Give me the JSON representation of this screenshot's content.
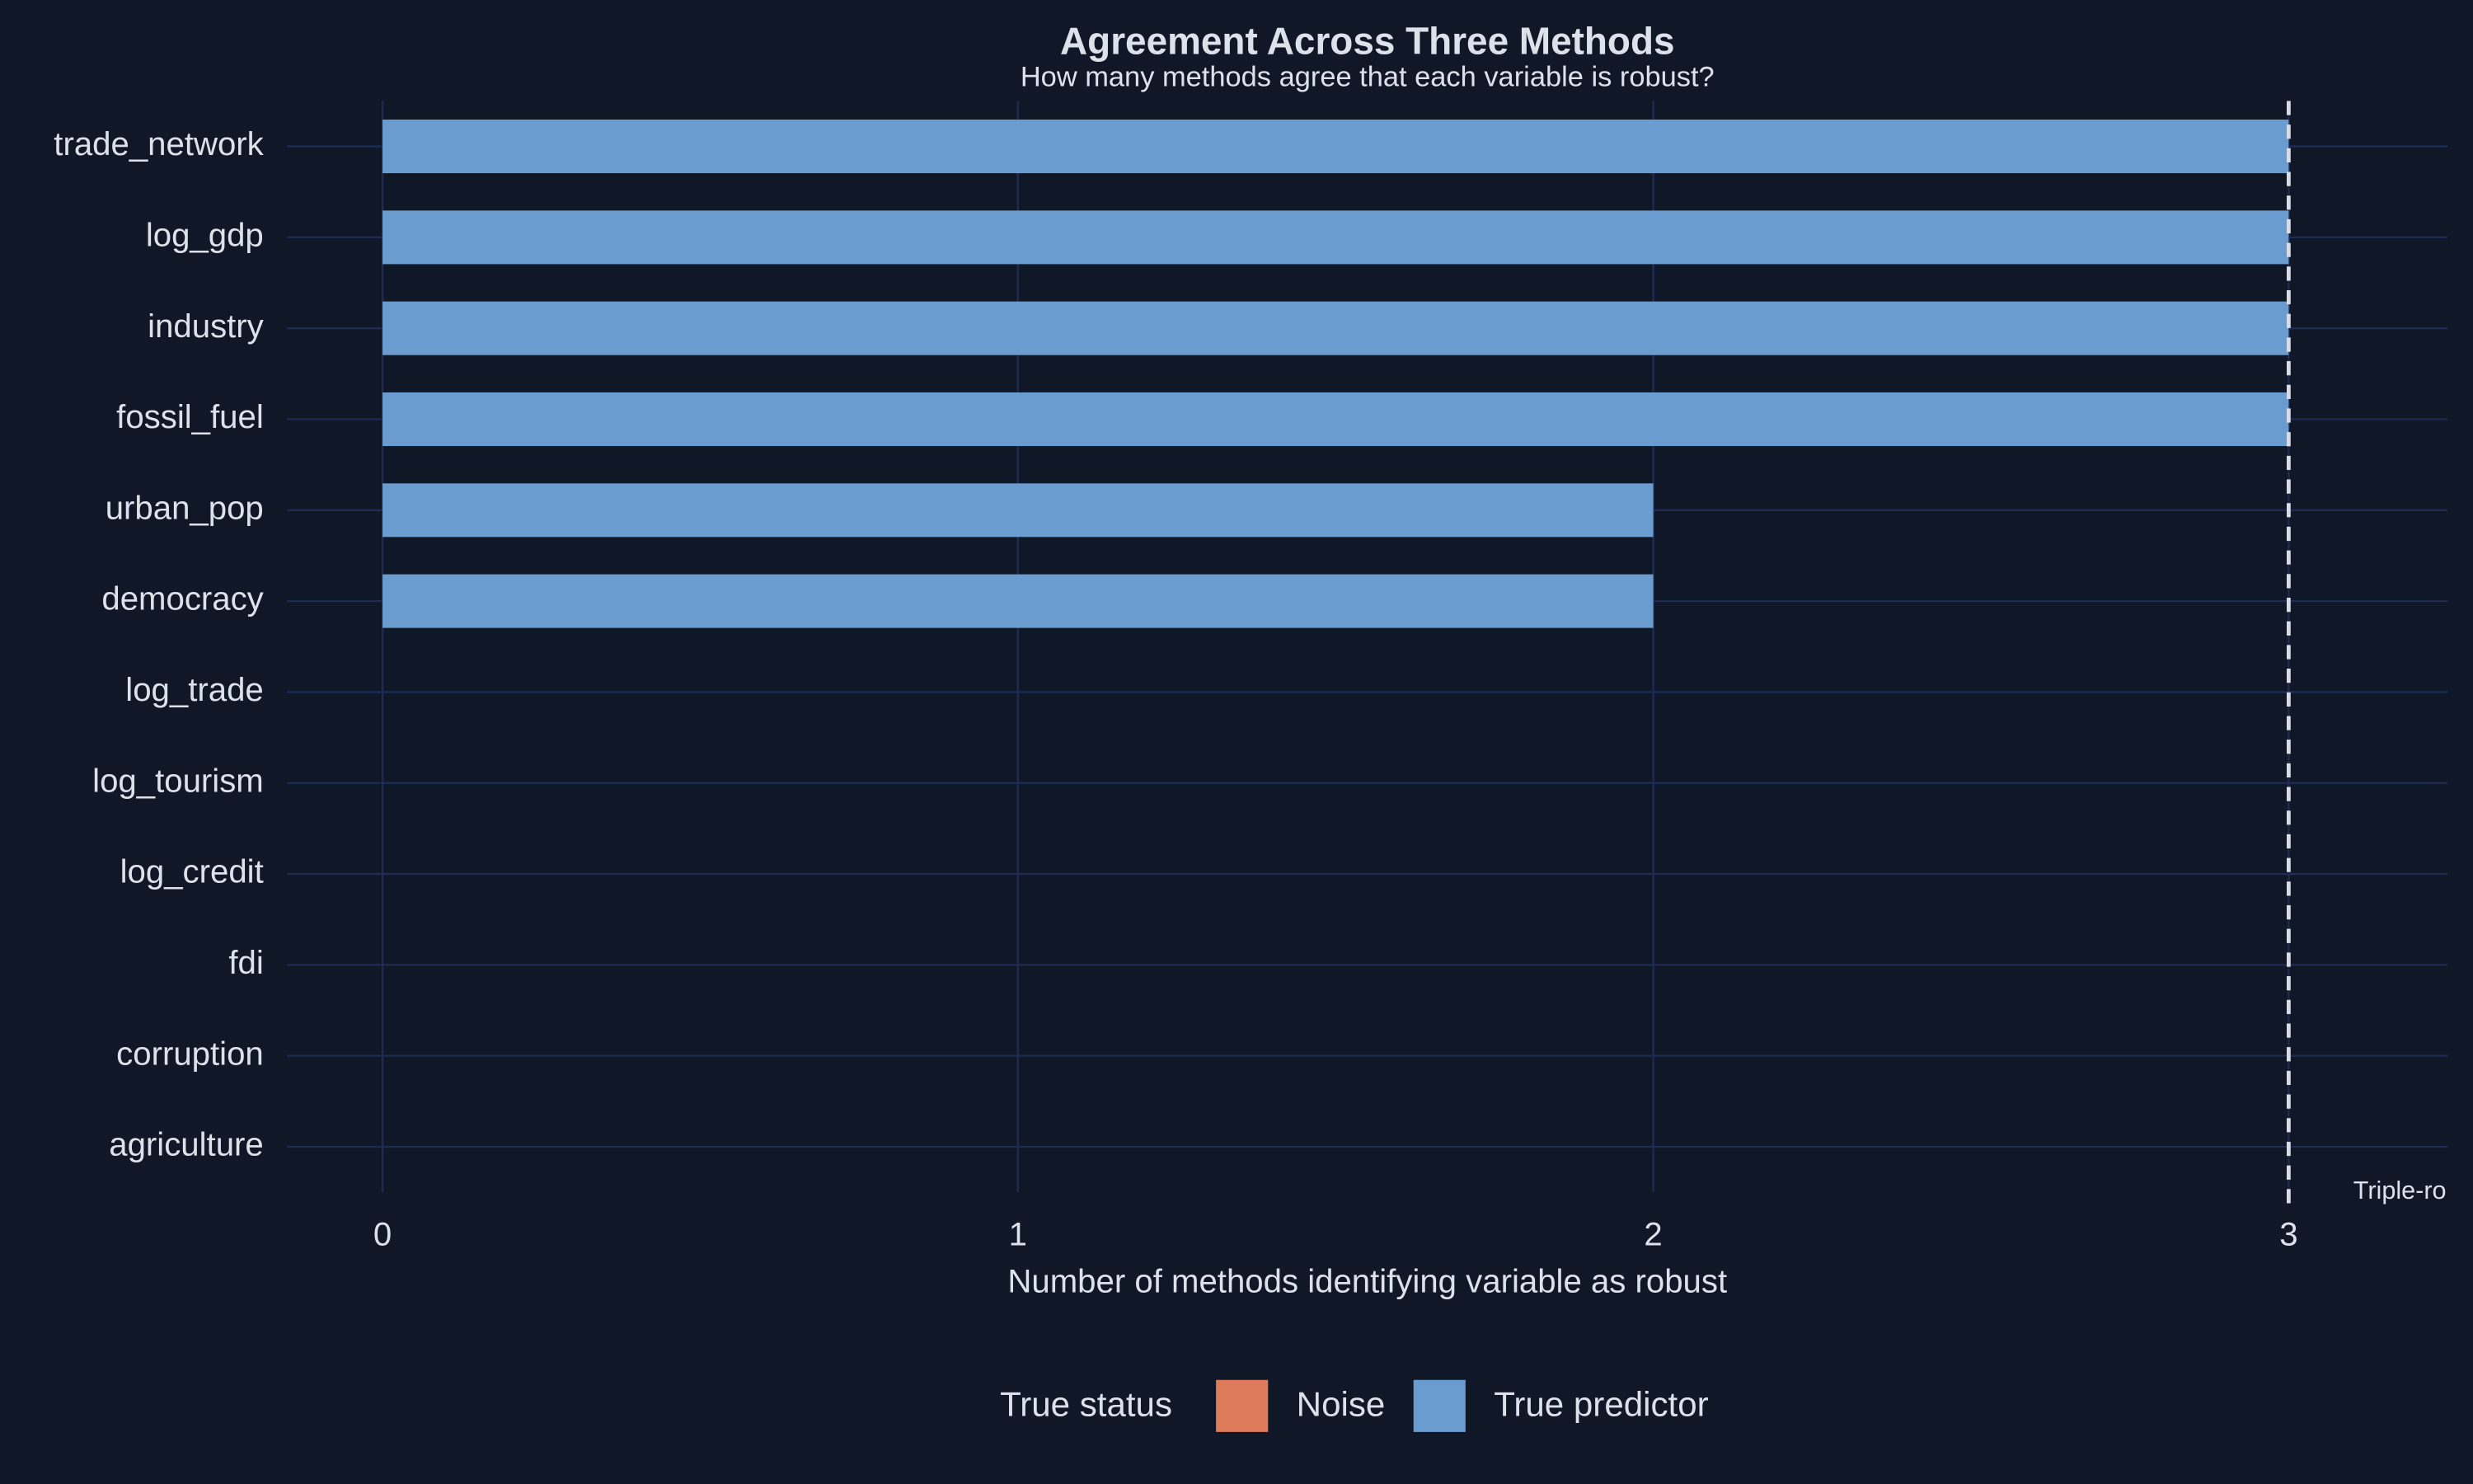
{
  "chart_data": {
    "type": "barh",
    "title": "Agreement Across Three Methods",
    "subtitle": "How many methods agree that each variable is robust?",
    "x_label": "Number of methods identifying variable as robust",
    "categories": [
      "trade_network",
      "log_gdp",
      "industry",
      "fossil_fuel",
      "urban_pop",
      "democracy",
      "log_trade",
      "log_tourism",
      "log_credit",
      "fdi",
      "corruption",
      "agriculture"
    ],
    "series": [
      {
        "name": "Noise",
        "color": "#dd7b5b",
        "values": [
          null,
          null,
          null,
          null,
          null,
          null,
          0,
          0,
          0,
          0,
          0,
          0
        ]
      },
      {
        "name": "True predictor",
        "color": "#6b9ccf",
        "values": [
          3,
          3,
          3,
          3,
          2,
          2,
          null,
          null,
          null,
          null,
          null,
          null
        ]
      }
    ],
    "legend_title": "True status",
    "xlim": [
      -0.15,
      3.25
    ],
    "xticks": [
      0,
      1,
      2,
      3
    ],
    "grid": true,
    "reference_line": 3,
    "annotation": "Triple-ro"
  }
}
